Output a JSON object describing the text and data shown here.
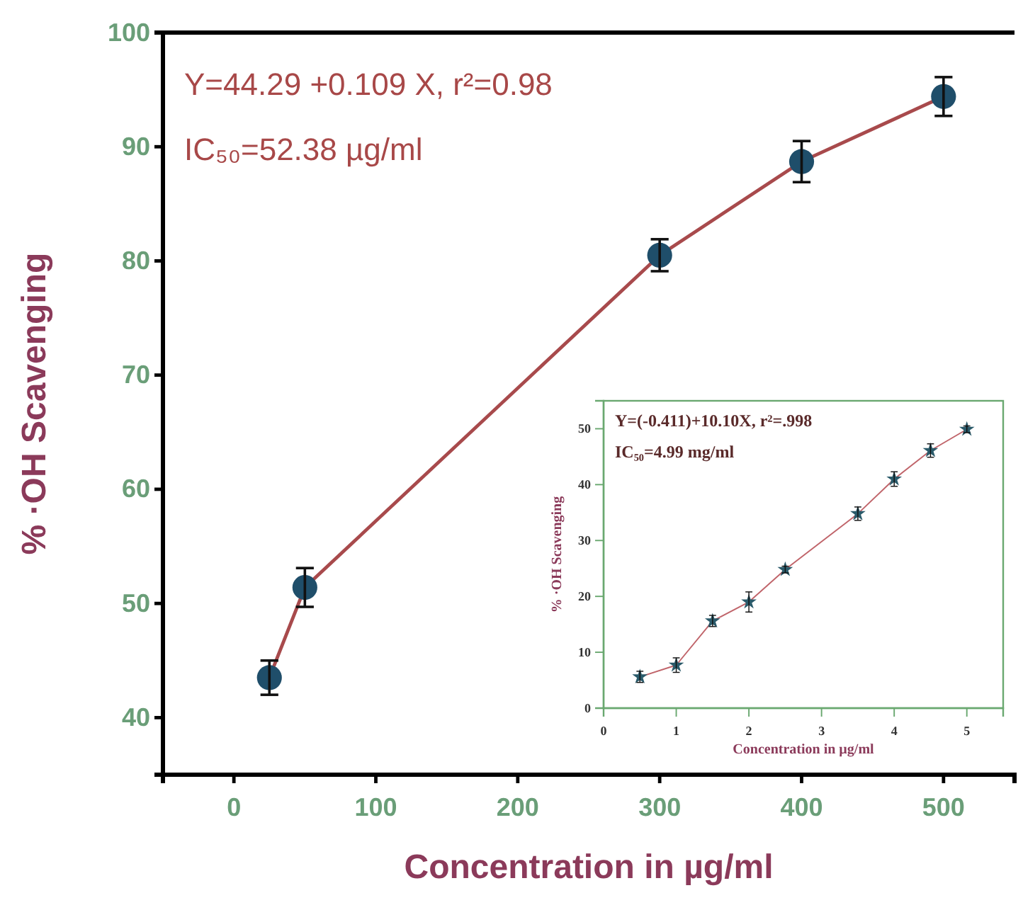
{
  "chart_data": [
    {
      "type": "line",
      "xlabel": "Concentration in µg/ml",
      "ylabel": "% ·OH Scavenging",
      "marker": "circle",
      "line_style": "solid",
      "xlim": [
        -50,
        550
      ],
      "ylim": [
        35,
        100
      ],
      "xticks": [
        0,
        100,
        200,
        300,
        400,
        500
      ],
      "yticks": [
        40,
        50,
        60,
        70,
        80,
        90,
        100
      ],
      "annotations": [
        "Y=44.29 +0.109 X, r²=0.98",
        "IC₅₀=52.38 µg/ml"
      ],
      "series": [
        {
          "color": "#a84a4c",
          "x": [
            25,
            50,
            300,
            400,
            500
          ],
          "values": [
            43.5,
            51.4,
            80.5,
            88.7,
            94.4
          ],
          "errors": [
            1.5,
            1.7,
            1.4,
            1.8,
            1.7
          ]
        }
      ]
    },
    {
      "type": "line",
      "xlabel": "Concentration in µg/ml",
      "ylabel": "% ·OH Scavenging",
      "marker": "star",
      "line_style": "solid",
      "xlim": [
        0,
        5.5
      ],
      "ylim": [
        0,
        55
      ],
      "xticks": [
        0,
        1,
        2,
        3,
        4,
        5
      ],
      "yticks": [
        0,
        10,
        20,
        30,
        40,
        50
      ],
      "annotations": [
        "Y=(-0.411)+10.10X, r²=.998",
        "IC₅₀=4.99 mg/ml"
      ],
      "series": [
        {
          "color": "#c0646a",
          "x": [
            0.5,
            1,
            1.5,
            2,
            2.5,
            3.5,
            4,
            4.5,
            5
          ],
          "values": [
            5.6,
            7.7,
            15.6,
            19,
            24.8,
            34.8,
            41,
            46.1,
            49.9
          ],
          "errors": [
            1,
            1.3,
            1,
            1.8,
            0.6,
            1.2,
            1.3,
            1.2,
            0.6
          ]
        }
      ]
    }
  ]
}
